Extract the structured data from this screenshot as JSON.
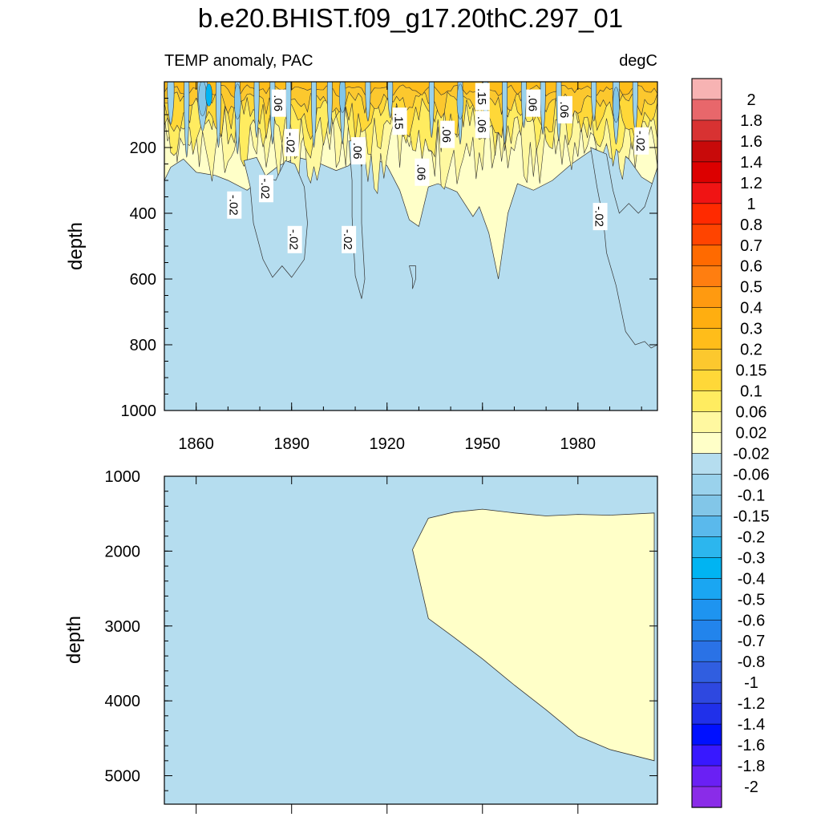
{
  "chart_data": {
    "type": "heatmap",
    "title": "b.e20.BHIST.f09_g17.20thC.297_01",
    "subtitle_left": "TEMP anomaly, PAC",
    "subtitle_right": "degC",
    "xlabel": "",
    "ylabel": "depth",
    "xlim": [
      1850,
      2005
    ],
    "x_ticks": [
      1860,
      1890,
      1920,
      1950,
      1980
    ],
    "panels": [
      {
        "name": "upper",
        "ylim": [
          0,
          1000
        ],
        "y_ticks": [
          200,
          400,
          600,
          800,
          1000
        ],
        "contour_labels": [
          {
            "text": ".06",
            "x": 1886,
            "y": 65
          },
          {
            "text": "-.02",
            "x": 1890,
            "y": 185
          },
          {
            "text": "-.02",
            "x": 1882,
            "y": 325
          },
          {
            "text": "-.02",
            "x": 1872,
            "y": 375
          },
          {
            "text": "-.02",
            "x": 1891,
            "y": 480
          },
          {
            "text": ".06",
            "x": 1911,
            "y": 210
          },
          {
            "text": "-.02",
            "x": 1908,
            "y": 480
          },
          {
            "text": ".15",
            "x": 1924,
            "y": 120
          },
          {
            "text": ".06",
            "x": 1931,
            "y": 275
          },
          {
            "text": ".06",
            "x": 1939,
            "y": 160
          },
          {
            "text": ".15",
            "x": 1950,
            "y": 45
          },
          {
            "text": ".06",
            "x": 1950,
            "y": 130
          },
          {
            "text": ".06",
            "x": 1966,
            "y": 65
          },
          {
            "text": ".06",
            "x": 1976,
            "y": 85
          },
          {
            "text": "-.02",
            "x": 1987,
            "y": 410
          },
          {
            "text": "-.02",
            "x": 2000,
            "y": 180
          }
        ]
      },
      {
        "name": "lower",
        "ylim": [
          1000,
          5380
        ],
        "y_ticks": [
          1000,
          2000,
          3000,
          4000,
          5000
        ],
        "warm_region": {
          "value_class": "0.02 to 0.06",
          "boundary_years": [
            1928,
            1933,
            1941,
            1950,
            1960,
            1970,
            1980,
            1990,
            2004
          ],
          "boundary_depth_top": [
            1980,
            1560,
            1480,
            1440,
            1490,
            1530,
            1510,
            1520,
            1490
          ],
          "boundary_depth_bottom": [
            1980,
            2900,
            3150,
            3440,
            3790,
            4120,
            4470,
            4650,
            4800
          ]
        }
      }
    ],
    "colorbar": {
      "labels": [
        "2",
        "1.8",
        "1.6",
        "1.4",
        "1.2",
        "1",
        "0.8",
        "0.7",
        "0.6",
        "0.5",
        "0.4",
        "0.3",
        "0.2",
        "0.15",
        "0.1",
        "0.06",
        "0.02",
        "-0.02",
        "-0.06",
        "-0.1",
        "-0.15",
        "-0.2",
        "-0.3",
        "-0.4",
        "-0.5",
        "-0.6",
        "-0.7",
        "-0.8",
        "-1",
        "-1.2",
        "-1.4",
        "-1.6",
        "-1.8",
        "-2"
      ],
      "colors": [
        "#f7b3b3",
        "#e8676b",
        "#d83232",
        "#c80a0a",
        "#dc0000",
        "#f01414",
        "#ff2a00",
        "#ff4400",
        "#ff6a00",
        "#ff7e10",
        "#ff9a10",
        "#ffae10",
        "#ffbd1a",
        "#fcc82e",
        "#ffd838",
        "#ffec60",
        "#fff8a0",
        "#ffffc8",
        "#b5ddef",
        "#9ad2ec",
        "#82c6e8",
        "#5ab9ec",
        "#2cb6ee",
        "#00b4f2",
        "#1aa6f2",
        "#1e94f0",
        "#2284ec",
        "#2a72e6",
        "#305ee0",
        "#2e48e0",
        "#2030ea",
        "#0010ff",
        "#3818ff",
        "#6a20f4",
        "#8a2ce8"
      ]
    }
  }
}
